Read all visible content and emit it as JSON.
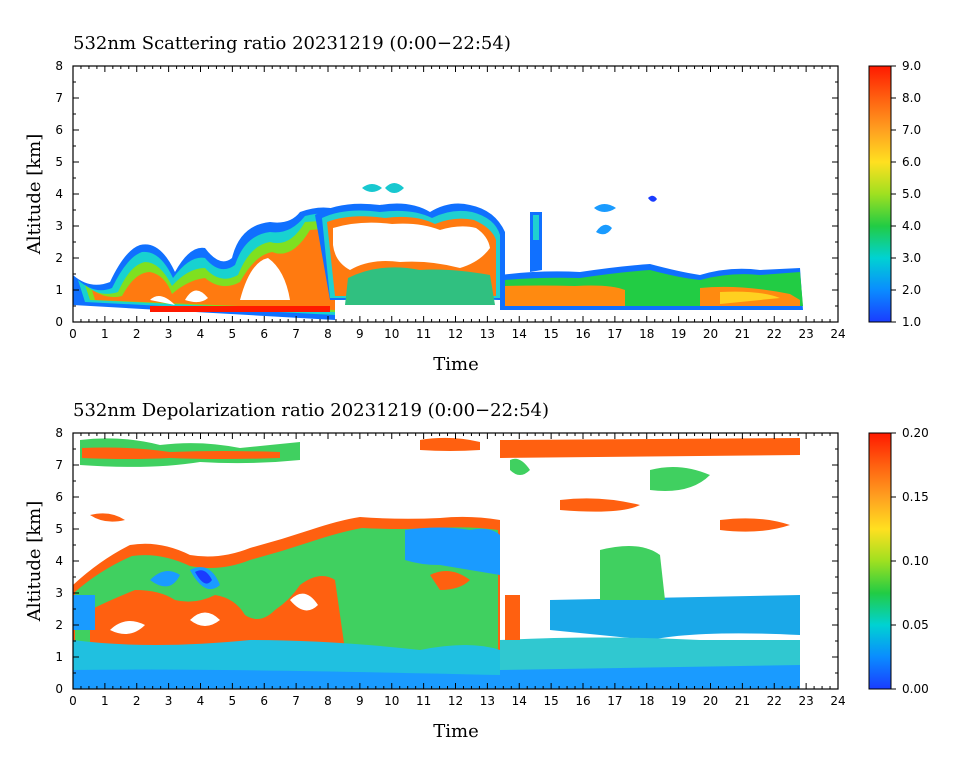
{
  "chart_data": [
    {
      "type": "heatmap",
      "title": "532nm Scattering ratio  20231219 (0:00−22:54)",
      "xlabel": "Time",
      "ylabel": "Altitude [km]",
      "xlim": [
        0,
        24
      ],
      "ylim": [
        0,
        8
      ],
      "x_ticks": [
        "0",
        "1",
        "2",
        "3",
        "4",
        "5",
        "6",
        "7",
        "8",
        "9",
        "10",
        "11",
        "12",
        "13",
        "14",
        "15",
        "16",
        "17",
        "18",
        "19",
        "20",
        "21",
        "22",
        "23",
        "24"
      ],
      "y_ticks": [
        "0",
        "1",
        "2",
        "3",
        "4",
        "5",
        "6",
        "7",
        "8"
      ],
      "colorbar": {
        "range": [
          1.0,
          9.0
        ],
        "ticks": [
          "1.0",
          "2.0",
          "3.0",
          "4.0",
          "5.0",
          "6.0",
          "7.0",
          "8.0",
          "9.0"
        ]
      },
      "regions": [
        {
          "name": "low cloud layer",
          "x": [
            0.0,
            22.9
          ],
          "y": [
            0.3,
            2.5
          ],
          "level": 8.0
        },
        {
          "name": "mid-level cloud",
          "x": [
            7.0,
            13.5
          ],
          "y": [
            1.5,
            3.6
          ],
          "level": 9.0
        },
        {
          "name": "cloud patch 9.5h",
          "x": [
            9.1,
            10.4
          ],
          "y": [
            3.9,
            4.4
          ],
          "level": 3.0
        },
        {
          "name": "column 14.5h",
          "x": [
            14.3,
            14.7
          ],
          "y": [
            1.4,
            3.5
          ],
          "level": 2.5
        },
        {
          "name": "patch 16.6h",
          "x": [
            16.3,
            16.9
          ],
          "y": [
            2.6,
            3.8
          ],
          "level": 3.0
        },
        {
          "name": "patch 18.1h",
          "x": [
            17.9,
            18.3
          ],
          "y": [
            3.6,
            4.0
          ],
          "level": 1.5
        }
      ]
    },
    {
      "type": "heatmap",
      "title": "532nm Depolarization ratio  20231219 (0:00−22:54)",
      "xlabel": "Time",
      "ylabel": "Altitude [km]",
      "xlim": [
        0,
        24
      ],
      "ylim": [
        0,
        8
      ],
      "x_ticks": [
        "0",
        "1",
        "2",
        "3",
        "4",
        "5",
        "6",
        "7",
        "8",
        "9",
        "10",
        "11",
        "12",
        "13",
        "14",
        "15",
        "16",
        "17",
        "18",
        "19",
        "20",
        "21",
        "22",
        "23",
        "24"
      ],
      "y_ticks": [
        "0",
        "1",
        "2",
        "3",
        "4",
        "5",
        "6",
        "7",
        "8"
      ],
      "colorbar": {
        "range": [
          0.0,
          0.2
        ],
        "ticks": [
          "0.00",
          "0.05",
          "0.10",
          "0.15",
          "0.20"
        ]
      },
      "regions": [
        {
          "name": "aerosol layer",
          "x": [
            0.0,
            13.5
          ],
          "y": [
            0.0,
            5.3
          ],
          "level": 0.09
        },
        {
          "name": "ice cloud",
          "x": [
            9.5,
            13.3
          ],
          "y": [
            3.6,
            5.0
          ],
          "level": 0.03
        },
        {
          "name": "low layer",
          "x": [
            13.5,
            22.9
          ],
          "y": [
            0.0,
            2.0
          ],
          "level": 0.04
        },
        {
          "name": "mid layer",
          "x": [
            15.0,
            22.9
          ],
          "y": [
            1.6,
            3.1
          ],
          "level": 0.04
        },
        {
          "name": "upper noise",
          "x": [
            0.0,
            22.9
          ],
          "y": [
            5.5,
            8.0
          ],
          "level": 0.12
        }
      ]
    }
  ]
}
